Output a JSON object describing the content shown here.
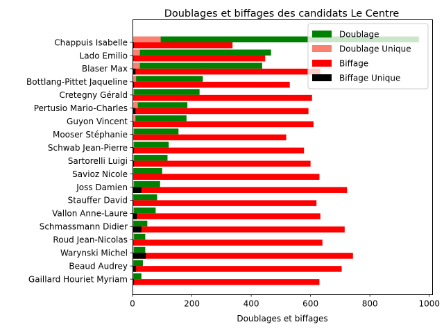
{
  "chart_data": {
    "type": "bar",
    "orientation": "horizontal",
    "title": "Doublages et biffages des candidats Le Centre",
    "xlabel": "Doublages et biffages",
    "ylabel": "",
    "xlim": [
      0,
      1010
    ],
    "xticks": [
      0,
      200,
      400,
      600,
      800,
      1000
    ],
    "grid": false,
    "legend_position": "top-right",
    "colors": {
      "doublage": "#008000",
      "doublage_unique": "#fa8072",
      "biffage": "#ff0000",
      "biffage_unique": "#000000"
    },
    "categories": [
      "Chappuis Isabelle",
      "Lado Emilio",
      "Blaser Max",
      "Bottlang-Pittet Jaqueline",
      "Cretegny Gérald",
      "Pertusio Mario-Charles",
      "Guyon Vincent",
      "Mooser Stéphanie",
      "Schwab Jean-Pierre",
      "Sartorelli Luigi",
      "Savioz Nicole",
      "Joss Damien",
      "Stauffer David",
      "Vallon Anne-Laure",
      "Schmassmann Didier",
      "Roud Jean-Nicolas",
      "Warynski Michel",
      "Beaud Audrey",
      "Gaillard Houriet Myriam"
    ],
    "series": [
      {
        "name": "Doublage",
        "key": "doublage",
        "values": [
          965,
          467,
          437,
          237,
          226,
          185,
          182,
          155,
          122,
          118,
          100,
          93,
          83,
          78,
          50,
          43,
          43,
          35,
          30
        ]
      },
      {
        "name": "Doublage Unique",
        "key": "doublage_unique",
        "values": [
          95,
          25,
          25,
          12,
          5,
          18,
          10,
          5,
          5,
          5,
          3,
          5,
          3,
          5,
          3,
          5,
          5,
          3,
          3
        ]
      },
      {
        "name": "Biffage",
        "key": "biffage",
        "values": [
          337,
          447,
          633,
          530,
          605,
          593,
          610,
          518,
          578,
          600,
          630,
          723,
          620,
          633,
          715,
          640,
          743,
          705,
          630
        ]
      },
      {
        "name": "Biffage Unique",
        "key": "biffage_unique",
        "values": [
          5,
          3,
          10,
          5,
          2,
          10,
          3,
          2,
          5,
          5,
          2,
          30,
          3,
          15,
          30,
          3,
          45,
          12,
          5
        ]
      }
    ]
  }
}
